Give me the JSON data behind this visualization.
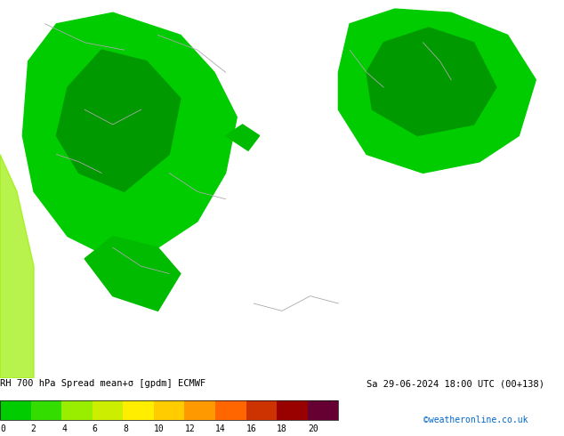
{
  "title_text": "RH 700 hPa Spread mean+σ [gpdm] ECMWF",
  "date_text": "Sa 29-06-2024 18:00 UTC (00+138)",
  "credit_text": "©weatheronline.co.uk",
  "colorbar_values": [
    0,
    2,
    4,
    6,
    8,
    10,
    12,
    14,
    16,
    18,
    20
  ],
  "colorbar_colors": [
    "#00cc00",
    "#33dd00",
    "#99ee00",
    "#ccee00",
    "#ffee00",
    "#ffcc00",
    "#ff9900",
    "#ff6600",
    "#cc3300",
    "#990000",
    "#660033"
  ],
  "bg_color": "#3dcc00",
  "top_bar_color": "#ffff00",
  "top_bar_height": 0.018,
  "map_bg": "#3dcc00",
  "fig_width": 6.34,
  "fig_height": 4.9,
  "dpi": 100
}
